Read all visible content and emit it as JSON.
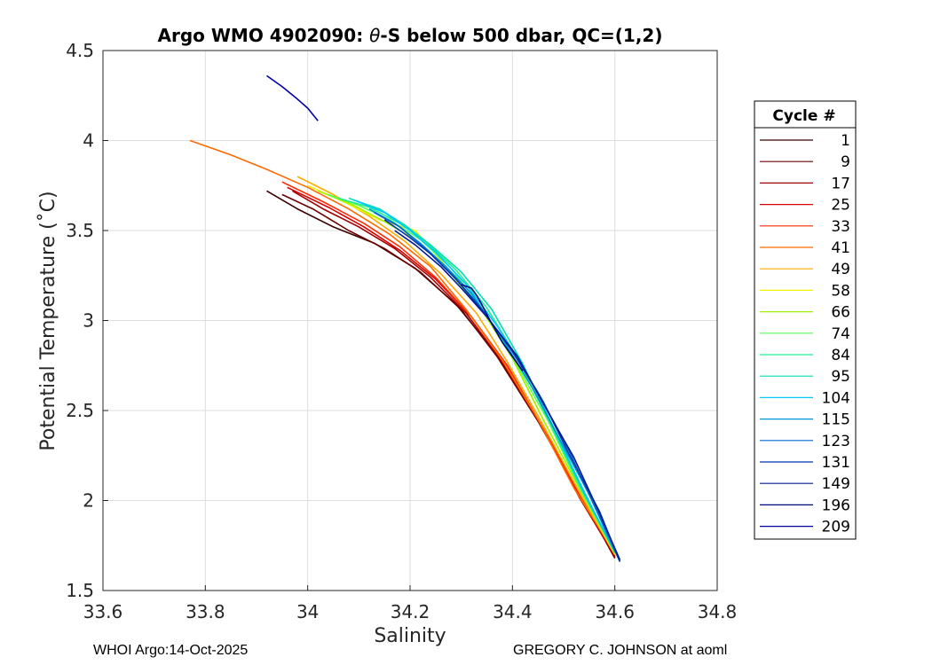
{
  "chart_data": {
    "type": "line",
    "title": "Argo WMO 4902090: θ-S below 500 dbar,  QC=(1,2)",
    "title_parts": {
      "prefix": "Argo WMO 4902090: ",
      "symbol": "θ",
      "suffix": "-S below 500 dbar,  QC=(1,2)"
    },
    "xlabel": "Salinity",
    "ylabel": "Potential Temperature (˚C)",
    "xlim": [
      33.6,
      34.8
    ],
    "ylim": [
      1.5,
      4.5
    ],
    "xticks": [
      "33.6",
      "33.8",
      "34",
      "34.2",
      "34.4",
      "34.6",
      "34.8"
    ],
    "xtick_values": [
      33.6,
      33.8,
      34.0,
      34.2,
      34.4,
      34.6,
      34.8
    ],
    "yticks": [
      "1.5",
      "2",
      "2.5",
      "3",
      "3.5",
      "4",
      "4.5"
    ],
    "ytick_values": [
      1.5,
      2.0,
      2.5,
      3.0,
      3.5,
      4.0,
      4.5
    ],
    "grid": true,
    "legend": {
      "title": "Cycle #",
      "placement": "right",
      "entries": [
        {
          "label": "1",
          "color": "#3a0000"
        },
        {
          "label": "9",
          "color": "#6e0000"
        },
        {
          "label": "17",
          "color": "#a30000"
        },
        {
          "label": "25",
          "color": "#d50000"
        },
        {
          "label": "33",
          "color": "#ff2a00"
        },
        {
          "label": "41",
          "color": "#ff6a00"
        },
        {
          "label": "49",
          "color": "#ffaa00"
        },
        {
          "label": "58",
          "color": "#f2f200"
        },
        {
          "label": "66",
          "color": "#9ef200"
        },
        {
          "label": "74",
          "color": "#55ff55"
        },
        {
          "label": "84",
          "color": "#1fef8a"
        },
        {
          "label": "95",
          "color": "#00e0b0"
        },
        {
          "label": "104",
          "color": "#00c8ff"
        },
        {
          "label": "115",
          "color": "#0095d5"
        },
        {
          "label": "123",
          "color": "#0066cc"
        },
        {
          "label": "131",
          "color": "#0038b0"
        },
        {
          "label": "149",
          "color": "#001a90"
        },
        {
          "label": "196",
          "color": "#000a80"
        },
        {
          "label": "209",
          "color": "#0000a8"
        }
      ]
    },
    "series": [
      {
        "color": "#3a0000",
        "x": [
          33.92,
          33.98,
          34.05,
          34.13,
          34.21,
          34.29,
          34.37,
          34.45,
          34.53,
          34.6
        ],
        "y": [
          3.72,
          3.62,
          3.52,
          3.43,
          3.29,
          3.09,
          2.81,
          2.45,
          2.05,
          1.68
        ]
      },
      {
        "color": "#6e0000",
        "x": [
          33.95,
          34.01,
          34.08,
          34.15,
          34.22,
          34.3,
          34.37,
          34.45,
          34.53,
          34.6
        ],
        "y": [
          3.7,
          3.62,
          3.5,
          3.4,
          3.27,
          3.06,
          2.8,
          2.44,
          2.04,
          1.68
        ]
      },
      {
        "color": "#a30000",
        "x": [
          33.97,
          34.03,
          34.1,
          34.17,
          34.24,
          34.31,
          34.38,
          34.46,
          34.53,
          34.6
        ],
        "y": [
          3.72,
          3.62,
          3.52,
          3.4,
          3.24,
          3.04,
          2.77,
          2.4,
          2.02,
          1.69
        ]
      },
      {
        "color": "#d50000",
        "x": [
          33.96,
          34.04,
          34.11,
          34.18,
          34.25,
          34.32,
          34.39,
          34.46,
          34.53,
          34.6
        ],
        "y": [
          3.74,
          3.63,
          3.52,
          3.39,
          3.23,
          3.02,
          2.75,
          2.4,
          2.03,
          1.69
        ]
      },
      {
        "color": "#ff2a00",
        "x": [
          33.95,
          34.03,
          34.11,
          34.18,
          34.25,
          34.32,
          34.39,
          34.46,
          34.53,
          34.6
        ],
        "y": [
          3.77,
          3.66,
          3.54,
          3.41,
          3.24,
          3.02,
          2.75,
          2.4,
          2.04,
          1.7
        ]
      },
      {
        "color": "#ff6a00",
        "x": [
          33.77,
          33.85,
          33.92,
          34.0,
          34.08,
          34.16,
          34.24,
          34.31,
          34.38,
          34.45,
          34.52,
          34.6
        ],
        "y": [
          4.0,
          3.92,
          3.84,
          3.74,
          3.62,
          3.48,
          3.3,
          3.06,
          2.78,
          2.45,
          2.07,
          1.71
        ]
      },
      {
        "color": "#ffaa00",
        "x": [
          33.98,
          34.05,
          34.12,
          34.19,
          34.26,
          34.33,
          34.39,
          34.46,
          34.53,
          34.6
        ],
        "y": [
          3.8,
          3.7,
          3.58,
          3.44,
          3.26,
          3.04,
          2.77,
          2.42,
          2.05,
          1.7
        ]
      },
      {
        "color": "#f2f200",
        "x": [
          34.0,
          34.07,
          34.14,
          34.21,
          34.27,
          34.34,
          34.4,
          34.46,
          34.53,
          34.6
        ],
        "y": [
          3.75,
          3.66,
          3.56,
          3.5,
          3.3,
          3.06,
          2.79,
          2.45,
          2.07,
          1.7
        ]
      },
      {
        "color": "#9ef200",
        "x": [
          34.02,
          34.09,
          34.15,
          34.21,
          34.27,
          34.34,
          34.4,
          34.46,
          34.53,
          34.6
        ],
        "y": [
          3.72,
          3.64,
          3.55,
          3.45,
          3.29,
          3.06,
          2.79,
          2.45,
          2.07,
          1.71
        ]
      },
      {
        "color": "#55ff55",
        "x": [
          34.04,
          34.1,
          34.16,
          34.22,
          34.28,
          34.34,
          34.4,
          34.47,
          34.53,
          34.6
        ],
        "y": [
          3.7,
          3.64,
          3.56,
          3.45,
          3.29,
          3.07,
          2.8,
          2.44,
          2.08,
          1.71
        ]
      },
      {
        "color": "#1fef8a",
        "x": [
          34.06,
          34.12,
          34.18,
          34.23,
          34.29,
          34.35,
          34.41,
          34.47,
          34.53,
          34.6
        ],
        "y": [
          3.68,
          3.63,
          3.54,
          3.44,
          3.28,
          3.07,
          2.79,
          2.45,
          2.09,
          1.71
        ]
      },
      {
        "color": "#00e0b0",
        "x": [
          34.08,
          34.14,
          34.19,
          34.24,
          34.3,
          34.36,
          34.42,
          34.48,
          34.54,
          34.6
        ],
        "y": [
          3.68,
          3.62,
          3.53,
          3.42,
          3.27,
          3.06,
          2.76,
          2.4,
          2.05,
          1.71
        ]
      },
      {
        "color": "#00c8ff",
        "x": [
          34.09,
          34.15,
          34.2,
          34.25,
          34.31,
          34.37,
          34.43,
          34.49,
          34.54,
          34.61
        ],
        "y": [
          3.67,
          3.6,
          3.5,
          3.38,
          3.2,
          2.97,
          2.7,
          2.35,
          2.04,
          1.67
        ]
      },
      {
        "color": "#0095d5",
        "x": [
          34.12,
          34.17,
          34.22,
          34.27,
          34.32,
          34.38,
          34.44,
          34.5,
          34.56,
          34.61
        ],
        "y": [
          3.62,
          3.54,
          3.43,
          3.3,
          3.15,
          2.9,
          2.62,
          2.3,
          1.98,
          1.67
        ]
      },
      {
        "color": "#0066cc",
        "x": [
          34.13,
          34.18,
          34.23,
          34.28,
          34.33,
          34.39,
          34.45,
          34.51,
          34.56,
          34.61
        ],
        "y": [
          3.6,
          3.52,
          3.4,
          3.26,
          3.1,
          2.87,
          2.6,
          2.28,
          1.97,
          1.66
        ]
      },
      {
        "color": "#0038b0",
        "x": [
          34.15,
          34.2,
          34.24,
          34.29,
          34.34,
          34.4,
          34.46,
          34.51,
          34.57,
          34.61
        ],
        "y": [
          3.56,
          3.46,
          3.37,
          3.23,
          3.06,
          2.83,
          2.55,
          2.26,
          1.94,
          1.66
        ]
      },
      {
        "color": "#001a90",
        "x": [
          34.17,
          34.21,
          34.26,
          34.3,
          34.35,
          34.41,
          34.46,
          34.52,
          34.57,
          34.61
        ],
        "y": [
          3.5,
          3.42,
          3.3,
          3.18,
          3.02,
          2.8,
          2.54,
          2.24,
          1.93,
          1.67
        ]
      },
      {
        "color": "#000a80",
        "x": [
          34.3,
          34.32,
          34.33,
          34.34,
          34.36,
          34.38,
          34.4,
          34.42
        ],
        "y": [
          3.2,
          3.18,
          3.14,
          3.09,
          2.98,
          2.88,
          2.8,
          2.72
        ]
      },
      {
        "color": "#0000a8",
        "x": [
          33.92,
          33.95,
          33.98,
          34.0,
          34.02
        ],
        "y": [
          4.36,
          4.3,
          4.23,
          4.18,
          4.11
        ]
      }
    ]
  },
  "footer": {
    "left": "WHOI Argo:14-Oct-2025",
    "right": "GREGORY C. JOHNSON at aoml"
  }
}
